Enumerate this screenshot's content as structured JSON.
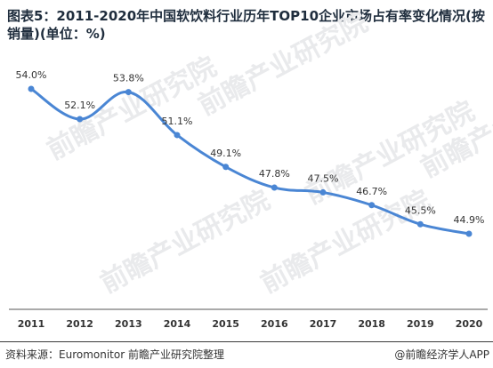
{
  "title": "图表5：2011-2020年中国软饮料行业历年TOP10企业市场占有率变化情况(按销量)(单位：%)",
  "watermark": "前瞻产业研究院",
  "footer": {
    "source": "资料来源：Euromonitor 前瞻产业研究院整理",
    "credit": "@前瞻经济学人APP"
  },
  "colors": {
    "line": "#4a86d4",
    "axis": "#555555"
  },
  "chart_data": {
    "type": "line",
    "x": [
      "2011",
      "2012",
      "2013",
      "2014",
      "2015",
      "2016",
      "2017",
      "2018",
      "2019",
      "2020"
    ],
    "series": [
      {
        "values": [
          54.0,
          52.1,
          53.8,
          51.1,
          49.1,
          47.8,
          47.5,
          46.7,
          45.5,
          44.9
        ],
        "labels": [
          "54.0%",
          "52.1%",
          "53.8%",
          "51.1%",
          "49.1%",
          "47.8%",
          "47.5%",
          "46.7%",
          "45.5%",
          "44.9%"
        ]
      }
    ],
    "grid": false,
    "legend": "none"
  }
}
